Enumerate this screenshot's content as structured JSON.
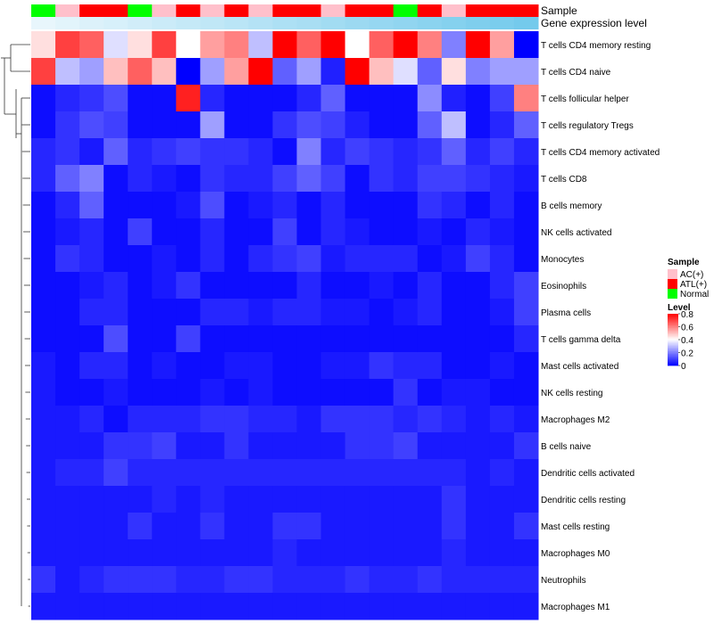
{
  "chart_data": {
    "type": "heatmap",
    "title": "",
    "annotation_tracks": [
      {
        "name": "Sample",
        "values": [
          "Normal",
          "AC(+)",
          "ATL(+)",
          "ATL(+)",
          "Normal",
          "AC(+)",
          "ATL(+)",
          "AC(+)",
          "ATL(+)",
          "AC(+)",
          "ATL(+)",
          "ATL(+)",
          "AC(+)",
          "ATL(+)",
          "ATL(+)",
          "Normal",
          "ATL(+)",
          "AC(+)",
          "ATL(+)",
          "ATL(+)",
          "ATL(+)"
        ]
      },
      {
        "name": "Gene expression level",
        "values": [
          0,
          0.05,
          0.1,
          0.14,
          0.19,
          0.24,
          0.29,
          0.33,
          0.38,
          0.43,
          0.48,
          0.52,
          0.57,
          0.62,
          0.67,
          0.71,
          0.76,
          0.81,
          0.86,
          0.9,
          0.95
        ]
      }
    ],
    "rows": [
      "T cells CD4 memory resting",
      "T cells CD4 naive",
      "T cells follicular helper",
      "T cells regulatory  Tregs",
      "T cells CD4 memory activated",
      "T cells CD8",
      "B cells memory",
      "NK cells activated",
      "Monocytes",
      "Eosinophils",
      "Plasma cells",
      "T cells gamma delta",
      "Mast cells activated",
      "NK cells resting",
      "Macrophages M2",
      "B cells naive",
      "Dendritic cells activated",
      "Dendritic cells resting",
      "Mast cells resting",
      "Macrophages M0",
      "Neutrophils",
      "Macrophages M1"
    ],
    "n_columns": 21,
    "values": [
      [
        0.45,
        0.7,
        0.65,
        0.35,
        0.45,
        0.7,
        0.4,
        0.55,
        0.6,
        0.3,
        0.8,
        0.65,
        0.8,
        0.4,
        0.65,
        0.8,
        0.6,
        0.2,
        0.8,
        0.55,
        0.0
      ],
      [
        0.7,
        0.3,
        0.25,
        0.5,
        0.65,
        0.5,
        0.0,
        0.25,
        0.55,
        0.8,
        0.15,
        0.25,
        0.05,
        0.8,
        0.5,
        0.35,
        0.15,
        0.45,
        0.2,
        0.25,
        0.25
      ],
      [
        0.02,
        0.06,
        0.08,
        0.12,
        0.02,
        0.02,
        0.75,
        0.06,
        0.02,
        0.02,
        0.02,
        0.06,
        0.15,
        0.02,
        0.02,
        0.02,
        0.22,
        0.05,
        0.02,
        0.1,
        0.6
      ],
      [
        0.02,
        0.08,
        0.12,
        0.1,
        0.02,
        0.02,
        0.02,
        0.25,
        0.02,
        0.02,
        0.08,
        0.12,
        0.1,
        0.05,
        0.02,
        0.02,
        0.15,
        0.3,
        0.02,
        0.06,
        0.15
      ],
      [
        0.06,
        0.08,
        0.04,
        0.15,
        0.06,
        0.08,
        0.1,
        0.08,
        0.08,
        0.06,
        0.02,
        0.2,
        0.06,
        0.1,
        0.08,
        0.06,
        0.08,
        0.15,
        0.06,
        0.1,
        0.06
      ],
      [
        0.06,
        0.15,
        0.2,
        0.02,
        0.06,
        0.04,
        0.02,
        0.08,
        0.06,
        0.06,
        0.1,
        0.15,
        0.1,
        0.02,
        0.08,
        0.06,
        0.1,
        0.1,
        0.08,
        0.06,
        0.04
      ],
      [
        0.02,
        0.06,
        0.15,
        0.02,
        0.02,
        0.02,
        0.04,
        0.12,
        0.02,
        0.04,
        0.06,
        0.02,
        0.06,
        0.02,
        0.02,
        0.02,
        0.08,
        0.06,
        0.02,
        0.06,
        0.02
      ],
      [
        0.02,
        0.04,
        0.06,
        0.02,
        0.1,
        0.02,
        0.02,
        0.06,
        0.02,
        0.02,
        0.1,
        0.02,
        0.06,
        0.04,
        0.02,
        0.02,
        0.04,
        0.02,
        0.06,
        0.04,
        0.02
      ],
      [
        0.02,
        0.08,
        0.06,
        0.02,
        0.02,
        0.04,
        0.02,
        0.06,
        0.02,
        0.06,
        0.08,
        0.1,
        0.04,
        0.06,
        0.06,
        0.06,
        0.02,
        0.04,
        0.1,
        0.06,
        0.02
      ],
      [
        0.02,
        0.02,
        0.04,
        0.06,
        0.02,
        0.04,
        0.08,
        0.02,
        0.02,
        0.02,
        0.02,
        0.06,
        0.02,
        0.02,
        0.04,
        0.02,
        0.06,
        0.02,
        0.02,
        0.06,
        0.1
      ],
      [
        0.02,
        0.02,
        0.06,
        0.06,
        0.02,
        0.02,
        0.02,
        0.06,
        0.06,
        0.04,
        0.06,
        0.06,
        0.04,
        0.04,
        0.02,
        0.04,
        0.06,
        0.02,
        0.02,
        0.04,
        0.1
      ],
      [
        0.02,
        0.02,
        0.02,
        0.12,
        0.02,
        0.02,
        0.1,
        0.02,
        0.02,
        0.02,
        0.02,
        0.02,
        0.02,
        0.02,
        0.02,
        0.02,
        0.02,
        0.02,
        0.02,
        0.02,
        0.06
      ],
      [
        0.04,
        0.02,
        0.06,
        0.06,
        0.02,
        0.04,
        0.02,
        0.02,
        0.04,
        0.04,
        0.02,
        0.02,
        0.04,
        0.04,
        0.08,
        0.06,
        0.06,
        0.02,
        0.02,
        0.04,
        0.02
      ],
      [
        0.04,
        0.02,
        0.02,
        0.04,
        0.02,
        0.02,
        0.02,
        0.04,
        0.02,
        0.04,
        0.02,
        0.02,
        0.02,
        0.02,
        0.02,
        0.08,
        0.02,
        0.04,
        0.04,
        0.02,
        0.02
      ],
      [
        0.04,
        0.04,
        0.06,
        0.02,
        0.06,
        0.06,
        0.06,
        0.08,
        0.08,
        0.06,
        0.06,
        0.04,
        0.08,
        0.08,
        0.08,
        0.06,
        0.08,
        0.06,
        0.04,
        0.06,
        0.04
      ],
      [
        0.04,
        0.04,
        0.04,
        0.08,
        0.08,
        0.1,
        0.04,
        0.04,
        0.08,
        0.04,
        0.04,
        0.04,
        0.04,
        0.08,
        0.08,
        0.1,
        0.04,
        0.04,
        0.04,
        0.04,
        0.08
      ],
      [
        0.04,
        0.06,
        0.06,
        0.1,
        0.06,
        0.06,
        0.06,
        0.06,
        0.06,
        0.06,
        0.06,
        0.06,
        0.06,
        0.06,
        0.06,
        0.06,
        0.06,
        0.06,
        0.04,
        0.06,
        0.04
      ],
      [
        0.04,
        0.04,
        0.04,
        0.04,
        0.04,
        0.06,
        0.04,
        0.06,
        0.04,
        0.04,
        0.04,
        0.04,
        0.04,
        0.04,
        0.04,
        0.04,
        0.04,
        0.08,
        0.04,
        0.04,
        0.04
      ],
      [
        0.04,
        0.04,
        0.04,
        0.04,
        0.08,
        0.04,
        0.04,
        0.08,
        0.04,
        0.04,
        0.08,
        0.08,
        0.04,
        0.04,
        0.04,
        0.04,
        0.04,
        0.08,
        0.04,
        0.04,
        0.08
      ],
      [
        0.04,
        0.04,
        0.04,
        0.04,
        0.04,
        0.04,
        0.04,
        0.04,
        0.04,
        0.04,
        0.06,
        0.04,
        0.04,
        0.04,
        0.04,
        0.04,
        0.04,
        0.06,
        0.04,
        0.04,
        0.04
      ],
      [
        0.08,
        0.04,
        0.06,
        0.08,
        0.08,
        0.08,
        0.06,
        0.06,
        0.08,
        0.08,
        0.06,
        0.06,
        0.06,
        0.08,
        0.06,
        0.06,
        0.08,
        0.06,
        0.06,
        0.06,
        0.06
      ],
      [
        0.04,
        0.04,
        0.04,
        0.04,
        0.04,
        0.04,
        0.04,
        0.04,
        0.04,
        0.04,
        0.04,
        0.04,
        0.04,
        0.04,
        0.04,
        0.04,
        0.04,
        0.04,
        0.04,
        0.04,
        0.04
      ]
    ],
    "row_dendrogram": true,
    "legend": {
      "sample": {
        "title": "Sample",
        "items": [
          {
            "label": "AC(+)",
            "color": "#ffc0cb"
          },
          {
            "label": "ATL(+)",
            "color": "#ff0000"
          },
          {
            "label": "Normal",
            "color": "#00ff00"
          }
        ]
      },
      "level": {
        "title": "Level",
        "ticks": [
          0.8,
          0.6,
          0.4,
          0.2,
          0
        ],
        "range": [
          0,
          0.8
        ]
      }
    },
    "colors": {
      "low": "#0000ff",
      "mid": "#ffffff",
      "high": "#ff0000"
    }
  }
}
